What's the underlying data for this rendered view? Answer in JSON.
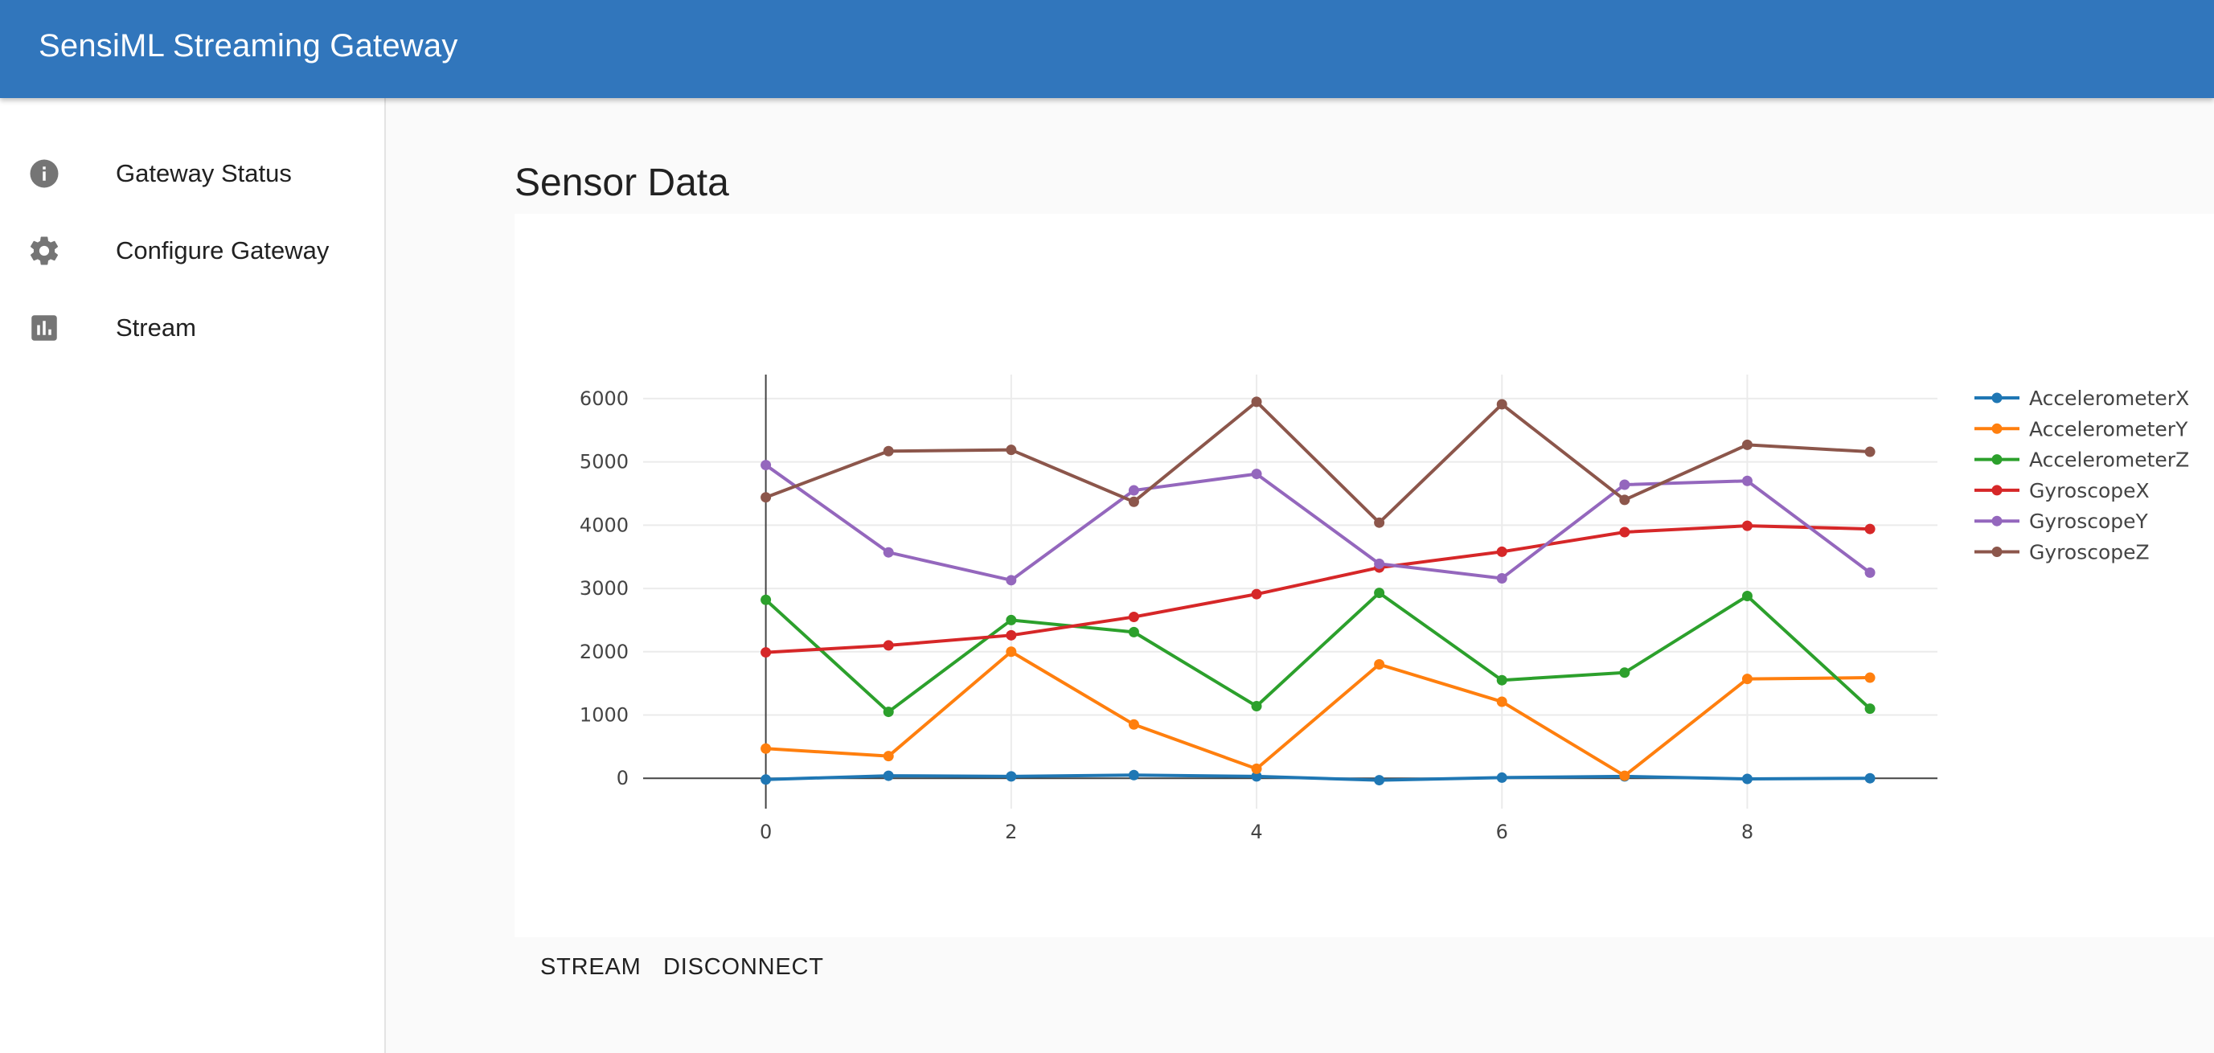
{
  "app": {
    "title": "SensiML Streaming Gateway"
  },
  "sidebar": {
    "items": [
      {
        "label": "Gateway Status",
        "icon": "info-icon"
      },
      {
        "label": "Configure Gateway",
        "icon": "gear-icon"
      },
      {
        "label": "Stream",
        "icon": "bar-chart-icon"
      }
    ]
  },
  "main": {
    "title": "Sensor Data",
    "buttons": {
      "stream": "STREAM",
      "disconnect": "DISCONNECT"
    }
  },
  "chart_data": {
    "type": "line",
    "x": [
      0,
      1,
      2,
      3,
      4,
      5,
      6,
      7,
      8,
      9
    ],
    "xticks": [
      0,
      2,
      4,
      6,
      8
    ],
    "yticks": [
      0,
      1000,
      2000,
      3000,
      4000,
      5000,
      6000
    ],
    "xlim": [
      -1,
      9.55
    ],
    "ylim": [
      -480,
      6380
    ],
    "grid": true,
    "legend": "right",
    "series": [
      {
        "name": "AccelerometerX",
        "color": "#1f77b4",
        "values": [
          -20,
          40,
          30,
          50,
          30,
          -30,
          10,
          30,
          -10,
          0
        ]
      },
      {
        "name": "AccelerometerY",
        "color": "#ff7f0e",
        "values": [
          470,
          350,
          2000,
          850,
          150,
          1800,
          1210,
          40,
          1570,
          1590
        ]
      },
      {
        "name": "AccelerometerZ",
        "color": "#2ca02c",
        "values": [
          2820,
          1050,
          2500,
          2310,
          1140,
          2930,
          1550,
          1670,
          2880,
          1100
        ]
      },
      {
        "name": "GyroscopeX",
        "color": "#d62728",
        "values": [
          1990,
          2100,
          2260,
          2550,
          2910,
          3330,
          3580,
          3890,
          3990,
          3940
        ]
      },
      {
        "name": "GyroscopeY",
        "color": "#9467bd",
        "values": [
          4950,
          3570,
          3130,
          4550,
          4810,
          3390,
          3160,
          4640,
          4700,
          3250
        ]
      },
      {
        "name": "GyroscopeZ",
        "color": "#8c564b",
        "values": [
          4440,
          5170,
          5190,
          4370,
          5950,
          4040,
          5910,
          4400,
          5270,
          5160
        ]
      }
    ]
  }
}
